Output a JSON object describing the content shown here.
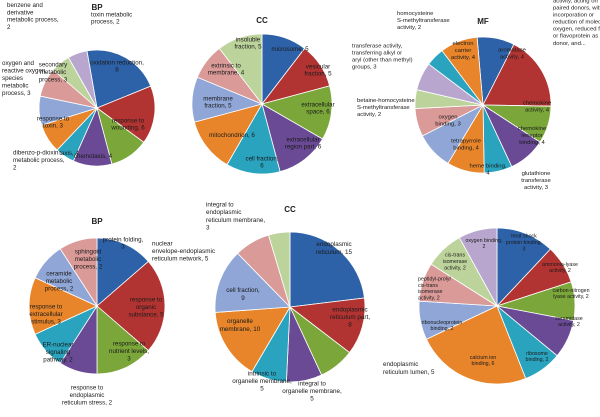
{
  "colors": [
    "#2e62a8",
    "#b23432",
    "#7aa63a",
    "#6a4a95",
    "#2aa3bf",
    "#e8852a",
    "#8fa6d6",
    "#d99a98",
    "#bcd49c",
    "#b8a6cf"
  ],
  "chart_data": [
    {
      "type": "pie",
      "title": "BP",
      "slices": [
        {
          "label": "oxidation reduction, 8",
          "value": 8,
          "color": 0
        },
        {
          "label": "response to wounding, 6",
          "value": 6,
          "color": 1
        },
        {
          "label": "chemotaxis, 4",
          "value": 4,
          "color": 2
        },
        {
          "label": "taxis, 4",
          "value": 4,
          "color": 3
        },
        {
          "label": "dibenzo-p-dioxin metabolic process, 2",
          "value": 2,
          "color": 4
        },
        {
          "label": "response to toxin, 3",
          "value": 3,
          "color": 5
        },
        {
          "label": "oxygen and reactive oxygen species metabolic process, 3",
          "value": 3,
          "color": 6
        },
        {
          "label": "secondary metabolic process, 3",
          "value": 3,
          "color": 7
        },
        {
          "label": "benzene and derivative metabolic process, 2",
          "value": 2,
          "color": 8
        },
        {
          "label": "toxin metabolic process, 2",
          "value": 2,
          "color": 9
        }
      ]
    },
    {
      "type": "pie",
      "title": "CC",
      "slices": [
        {
          "label": "microsome, 5",
          "value": 5,
          "color": 0
        },
        {
          "label": "vesicular fraction, 5",
          "value": 5,
          "color": 1
        },
        {
          "label": "extracellular space, 6",
          "value": 6,
          "color": 2
        },
        {
          "label": "extracellular region part, 6",
          "value": 6,
          "color": 3
        },
        {
          "label": "cell fraction, 6",
          "value": 6,
          "color": 4
        },
        {
          "label": "mitochondrion, 6",
          "value": 6,
          "color": 5
        },
        {
          "label": "membrane fraction, 5",
          "value": 5,
          "color": 6
        },
        {
          "label": "extrinsic to membrane, 4",
          "value": 4,
          "color": 7
        },
        {
          "label": "insoluble fraction, 5",
          "value": 5,
          "color": 8
        }
      ]
    },
    {
      "type": "pie",
      "title": "MF",
      "slices": [
        {
          "label": "aromatase activity, 4",
          "value": 4,
          "color": 0
        },
        {
          "label": "oxidoreductase activity, acting on paired donors, with incorporation or reduction of molecular oxygen, reduced flavin or flavoprotein as one donor, and...",
          "value": 8,
          "color": 1
        },
        {
          "label": "chemokine activity, 4",
          "value": 4,
          "color": 2
        },
        {
          "label": "chemokine receptor binding, 4",
          "value": 4,
          "color": 3
        },
        {
          "label": "glutathione transferase activity, 3",
          "value": 3,
          "color": 4
        },
        {
          "label": "heme binding, 4",
          "value": 4,
          "color": 5
        },
        {
          "label": "tetrapyrrole binding, 4",
          "value": 4,
          "color": 6
        },
        {
          "label": "oxygen binding, 3",
          "value": 3,
          "color": 7
        },
        {
          "label": "betaine-homocysteine S-methyltransferase activity, 2",
          "value": 2,
          "color": 8
        },
        {
          "label": "transferase activity, transferring alkyl or aryl (other than methyl) groups, 3",
          "value": 3,
          "color": 9
        },
        {
          "label": "homocysteine S-methyltransferase activity, 2",
          "value": 2,
          "color": 4
        },
        {
          "label": "electron carrier activity, 4",
          "value": 4,
          "color": 5
        }
      ]
    },
    {
      "type": "pie",
      "title": "BP",
      "slices": [
        {
          "label": "protein folding, 3",
          "value": 3,
          "color": 0
        },
        {
          "label": "response to organic substance, 5",
          "value": 5,
          "color": 1
        },
        {
          "label": "response to nutrient levels, 3",
          "value": 3,
          "color": 2
        },
        {
          "label": "response to endoplasmic reticulum stress, 2",
          "value": 2,
          "color": 3
        },
        {
          "label": "ER-nuclear signaling pathway, 2",
          "value": 2,
          "color": 4
        },
        {
          "label": "response to extracellular stimulus, 3",
          "value": 3,
          "color": 5
        },
        {
          "label": "ceramide metabolic process, 2",
          "value": 2,
          "color": 6
        },
        {
          "label": "sphingoid metabolic process, 2",
          "value": 2,
          "color": 7
        }
      ]
    },
    {
      "type": "pie",
      "title": "CC",
      "slices": [
        {
          "label": "endoplasmic reticulum, 15",
          "value": 15,
          "color": 0
        },
        {
          "label": "endoplasmic reticulum part, 8",
          "value": 8,
          "color": 1
        },
        {
          "label": "endoplasmic reticulum lumen, 5",
          "value": 5,
          "color": 2
        },
        {
          "label": "integral to organelle membrane, 5",
          "value": 5,
          "color": 3
        },
        {
          "label": "intrinsic to organelle membrane, 5",
          "value": 5,
          "color": 4
        },
        {
          "label": "organelle membrane, 10",
          "value": 10,
          "color": 5
        },
        {
          "label": "cell fraction, 9",
          "value": 9,
          "color": 6
        },
        {
          "label": "nuclear envelope-endoplasmic reticulum network, 5",
          "value": 5,
          "color": 7
        },
        {
          "label": "integral to endoplasmic reticulum membrane, 3",
          "value": 3,
          "color": 8
        }
      ]
    },
    {
      "type": "pie",
      "title": "MF",
      "slices": [
        {
          "label": "heat shock protein binding, 3",
          "value": 3,
          "color": 0
        },
        {
          "label": "ammonia-lyase activity, 2",
          "value": 2,
          "color": 1
        },
        {
          "label": "carbon-nitrogen lyase activity, 2",
          "value": 2,
          "color": 2
        },
        {
          "label": "ceramidase activity, 2",
          "value": 2,
          "color": 3
        },
        {
          "label": "ribosome binding, 2",
          "value": 2,
          "color": 4
        },
        {
          "label": "calcium ion binding, 6",
          "value": 6,
          "color": 5
        },
        {
          "label": "ribonucleoprotein binding, 2",
          "value": 2,
          "color": 6
        },
        {
          "label": "peptidyl-prolyl cis-trans isomerase activity, 2",
          "value": 2,
          "color": 7
        },
        {
          "label": "cis-trans isomerase activity, 2",
          "value": 2,
          "color": 8
        },
        {
          "label": "oxygen binding, 2",
          "value": 2,
          "color": 9
        }
      ]
    }
  ]
}
